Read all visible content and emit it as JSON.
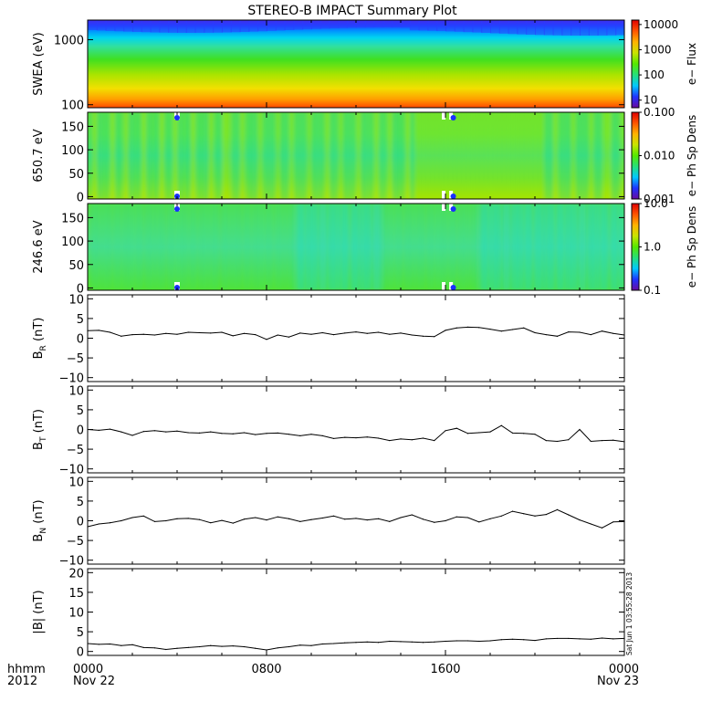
{
  "title": "STEREO-B IMPACT Summary Plot",
  "timestamp": "Sat Jun  1 03:55:28 2013",
  "x_axis": {
    "row1_label": "hhmm",
    "row2_label": "2012",
    "ticks": [
      {
        "hours": 0,
        "label": "0000",
        "date": "Nov 22"
      },
      {
        "hours": 8,
        "label": "0800",
        "date": ""
      },
      {
        "hours": 16,
        "label": "1600",
        "date": ""
      },
      {
        "hours": 24,
        "label": "0000",
        "date": "Nov 23"
      }
    ],
    "range_hours": [
      0,
      24
    ]
  },
  "chart_data": [
    {
      "type": "heatmap",
      "ylabel": "SWEA (eV)",
      "yscale": "log",
      "ylim": [
        90,
        2000
      ],
      "yticks": [
        {
          "v": 100,
          "label": "100"
        },
        {
          "v": 1000,
          "label": "1000"
        }
      ],
      "colorbar": {
        "label": "e− Flux",
        "scale": "log",
        "range": [
          5,
          15000
        ],
        "ticks": [
          {
            "v": 10,
            "label": "10"
          },
          {
            "v": 100,
            "label": "100"
          },
          {
            "v": 1000,
            "label": "1000"
          },
          {
            "v": 10000,
            "label": "10000"
          }
        ]
      },
      "colors": [
        "#6a0aa0",
        "#1f33ff",
        "#00c8ff",
        "#25e07a",
        "#55e800",
        "#c9e400",
        "#ffb300",
        "#ff5500",
        "#e00000"
      ]
    },
    {
      "type": "heatmap",
      "ylabel": "650.7 eV",
      "ylim": [
        -5,
        180
      ],
      "yticks": [
        {
          "v": 0,
          "label": "0"
        },
        {
          "v": 50,
          "label": "50"
        },
        {
          "v": 100,
          "label": "100"
        },
        {
          "v": 150,
          "label": "150"
        }
      ],
      "colorbar": {
        "label": "e− Ph Sp Dens",
        "scale": "log",
        "range": [
          0.001,
          0.1
        ],
        "ticks": [
          {
            "v": 0.001,
            "label": "0.001"
          },
          {
            "v": 0.01,
            "label": "0.010"
          },
          {
            "v": 0.1,
            "label": "0.100"
          }
        ]
      },
      "colors": [
        "#6a0aa0",
        "#1f33ff",
        "#00c8ff",
        "#25e07a",
        "#55e800",
        "#c9e400",
        "#ffb300",
        "#ff5500",
        "#e00000"
      ]
    },
    {
      "type": "heatmap",
      "ylabel": "246.6 eV",
      "ylim": [
        -5,
        180
      ],
      "yticks": [
        {
          "v": 0,
          "label": "0"
        },
        {
          "v": 50,
          "label": "50"
        },
        {
          "v": 100,
          "label": "100"
        },
        {
          "v": 150,
          "label": "150"
        }
      ],
      "colorbar": {
        "label": "e− Ph Sp Dens",
        "scale": "log",
        "range": [
          0.1,
          10
        ],
        "ticks": [
          {
            "v": 0.1,
            "label": "0.1"
          },
          {
            "v": 1,
            "label": "1.0"
          },
          {
            "v": 10,
            "label": "10.0"
          }
        ]
      },
      "colors": [
        "#6a0aa0",
        "#1f33ff",
        "#00c8ff",
        "#25e07a",
        "#55e800",
        "#c9e400",
        "#ffb300",
        "#ff5500",
        "#e00000"
      ]
    },
    {
      "type": "line",
      "ylabel": "B_R (nT)",
      "ylim": [
        -11,
        11
      ],
      "yticks": [
        {
          "v": -10,
          "label": "−10"
        },
        {
          "v": -5,
          "label": "−5"
        },
        {
          "v": 0,
          "label": "0"
        },
        {
          "v": 5,
          "label": "5"
        },
        {
          "v": 10,
          "label": "10"
        }
      ],
      "x": [
        0,
        0.5,
        1,
        1.5,
        2,
        2.5,
        3,
        3.5,
        4,
        4.5,
        5,
        5.5,
        6,
        6.5,
        7,
        7.5,
        8,
        8.5,
        9,
        9.5,
        10,
        10.5,
        11,
        11.5,
        12,
        12.5,
        13,
        13.5,
        14,
        14.5,
        15,
        15.5,
        16,
        16.5,
        17,
        17.5,
        18,
        18.5,
        19,
        19.5,
        20,
        20.5,
        21,
        21.5,
        22,
        22.5,
        23,
        23.5,
        24
      ],
      "y": [
        1.9,
        2.0,
        1.5,
        0.5,
        0.9,
        1.0,
        0.8,
        1.2,
        1.0,
        1.5,
        1.4,
        1.3,
        1.5,
        0.6,
        1.2,
        0.9,
        -0.3,
        0.8,
        0.3,
        1.3,
        1.0,
        1.4,
        0.9,
        1.3,
        1.6,
        1.2,
        1.5,
        1.0,
        1.3,
        0.8,
        0.5,
        0.4,
        2.0,
        2.6,
        2.8,
        2.7,
        2.3,
        1.8,
        2.2,
        2.6,
        1.4,
        0.9,
        0.5,
        1.6,
        1.5,
        0.9,
        1.8,
        1.2,
        0.8
      ]
    },
    {
      "type": "line",
      "ylabel": "B_T (nT)",
      "ylim": [
        -11,
        11
      ],
      "yticks": [
        {
          "v": -10,
          "label": "−10"
        },
        {
          "v": -5,
          "label": "−5"
        },
        {
          "v": 0,
          "label": "0"
        },
        {
          "v": 5,
          "label": "5"
        },
        {
          "v": 10,
          "label": "10"
        }
      ],
      "x": [
        0,
        0.5,
        1,
        1.5,
        2,
        2.5,
        3,
        3.5,
        4,
        4.5,
        5,
        5.5,
        6,
        6.5,
        7,
        7.5,
        8,
        8.5,
        9,
        9.5,
        10,
        10.5,
        11,
        11.5,
        12,
        12.5,
        13,
        13.5,
        14,
        14.5,
        15,
        15.5,
        16,
        16.5,
        17,
        17.5,
        18,
        18.5,
        19,
        19.5,
        20,
        20.5,
        21,
        21.5,
        22,
        22.5,
        23,
        23.5,
        24
      ],
      "y": [
        0.0,
        -0.2,
        0.1,
        -0.6,
        -1.5,
        -0.5,
        -0.3,
        -0.6,
        -0.4,
        -0.8,
        -0.9,
        -0.6,
        -1.0,
        -1.1,
        -0.8,
        -1.3,
        -1.0,
        -0.9,
        -1.2,
        -1.6,
        -1.2,
        -1.6,
        -2.3,
        -2.0,
        -2.1,
        -1.9,
        -2.2,
        -2.8,
        -2.4,
        -2.6,
        -2.2,
        -2.8,
        -0.3,
        0.3,
        -1.0,
        -0.8,
        -0.6,
        1.0,
        -0.9,
        -1.0,
        -1.2,
        -2.8,
        -3.0,
        -2.6,
        0.0,
        -3.0,
        -2.8,
        -2.7,
        -3.1
      ]
    },
    {
      "type": "line",
      "ylabel": "B_N (nT)",
      "ylim": [
        -11,
        11
      ],
      "yticks": [
        {
          "v": -10,
          "label": "−10"
        },
        {
          "v": -5,
          "label": "−5"
        },
        {
          "v": 0,
          "label": "0"
        },
        {
          "v": 5,
          "label": "5"
        },
        {
          "v": 10,
          "label": "10"
        }
      ],
      "x": [
        0,
        0.5,
        1,
        1.5,
        2,
        2.5,
        3,
        3.5,
        4,
        4.5,
        5,
        5.5,
        6,
        6.5,
        7,
        7.5,
        8,
        8.5,
        9,
        9.5,
        10,
        10.5,
        11,
        11.5,
        12,
        12.5,
        13,
        13.5,
        14,
        14.5,
        15,
        15.5,
        16,
        16.5,
        17,
        17.5,
        18,
        18.5,
        19,
        19.5,
        20,
        20.5,
        21,
        21.5,
        22,
        22.5,
        23,
        23.5,
        24
      ],
      "y": [
        -1.5,
        -0.8,
        -0.5,
        0.0,
        0.8,
        1.2,
        -0.2,
        0.0,
        0.5,
        0.6,
        0.3,
        -0.5,
        0.1,
        -0.6,
        0.4,
        0.8,
        0.2,
        1.0,
        0.5,
        -0.2,
        0.3,
        0.7,
        1.2,
        0.4,
        0.6,
        0.2,
        0.5,
        -0.2,
        0.8,
        1.5,
        0.4,
        -0.4,
        0.0,
        1.0,
        0.8,
        -0.3,
        0.5,
        1.2,
        2.4,
        1.8,
        1.2,
        1.6,
        2.8,
        1.5,
        0.2,
        -0.8,
        -1.8,
        -0.3,
        -0.2
      ]
    },
    {
      "type": "line",
      "ylabel": "|B| (nT)",
      "ylim": [
        -1,
        21
      ],
      "yticks": [
        {
          "v": 0,
          "label": "0"
        },
        {
          "v": 5,
          "label": "5"
        },
        {
          "v": 10,
          "label": "10"
        },
        {
          "v": 15,
          "label": "15"
        },
        {
          "v": 20,
          "label": "20"
        }
      ],
      "x": [
        0,
        0.5,
        1,
        1.5,
        2,
        2.5,
        3,
        3.5,
        4,
        4.5,
        5,
        5.5,
        6,
        6.5,
        7,
        7.5,
        8,
        8.5,
        9,
        9.5,
        10,
        10.5,
        11,
        11.5,
        12,
        12.5,
        13,
        13.5,
        14,
        14.5,
        15,
        15.5,
        16,
        16.5,
        17,
        17.5,
        18,
        18.5,
        19,
        19.5,
        20,
        20.5,
        21,
        21.5,
        22,
        22.5,
        23,
        23.5,
        24
      ],
      "y": [
        2.0,
        1.8,
        1.9,
        1.5,
        1.7,
        1.0,
        0.9,
        0.5,
        0.8,
        1.0,
        1.2,
        1.5,
        1.3,
        1.4,
        1.2,
        0.8,
        0.4,
        0.9,
        1.2,
        1.6,
        1.5,
        1.9,
        2.0,
        2.2,
        2.3,
        2.4,
        2.3,
        2.6,
        2.5,
        2.4,
        2.3,
        2.4,
        2.6,
        2.7,
        2.7,
        2.6,
        2.7,
        3.0,
        3.1,
        3.0,
        2.8,
        3.2,
        3.3,
        3.3,
        3.2,
        3.1,
        3.4,
        3.2,
        3.3
      ]
    }
  ]
}
